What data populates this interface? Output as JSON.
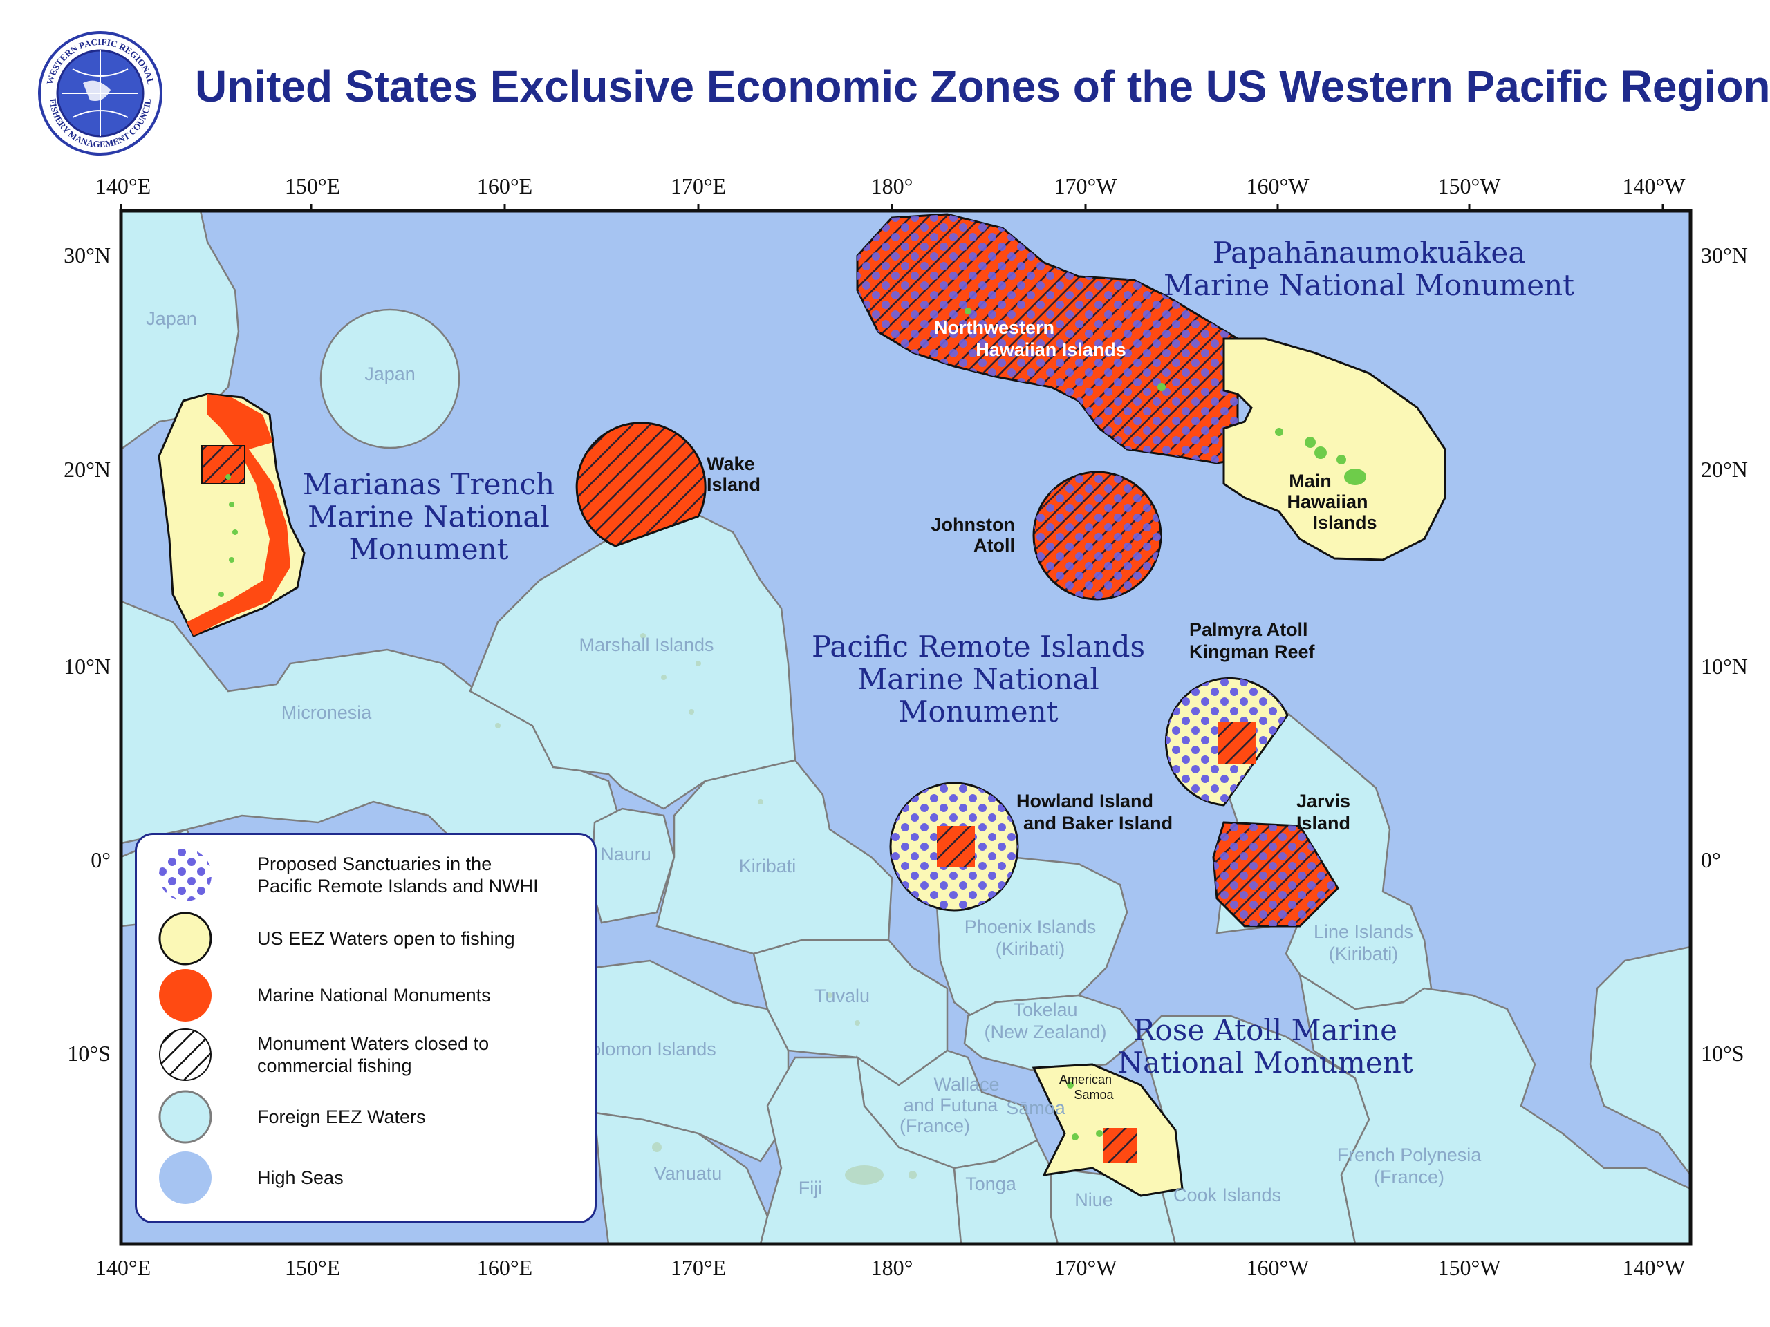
{
  "title": "United States Exclusive Economic Zones of the US Western Pacific Region",
  "logo": {
    "top_text": "WESTERN PACIFIC REGIONAL",
    "bottom_text": "FISHERY MANAGEMENT COUNCIL"
  },
  "axes": {
    "top_lon": [
      "140°E",
      "150°E",
      "160°E",
      "170°E",
      "180°",
      "170°W",
      "160°W",
      "150°W",
      "140°W"
    ],
    "bottom_lon": [
      "140°E",
      "150°E",
      "160°E",
      "170°E",
      "180°",
      "170°W",
      "160°W",
      "150°W",
      "140°W"
    ],
    "left_lat": [
      "30°N",
      "20°N",
      "10°N",
      "0°",
      "10°S"
    ],
    "right_lat": [
      "30°N",
      "20°N",
      "10°N",
      "0°",
      "10°S"
    ]
  },
  "foreign_labels": {
    "japan_1": "Japan",
    "japan_2": "Japan",
    "micronesia": "Micronesia",
    "marshall": "Marshall Islands",
    "nauru": "Nauru",
    "kiribati": "Kiribati",
    "phoenix_1": "Phoenix Islands",
    "phoenix_2": "(Kiribati)",
    "line_1": "Line Islands",
    "line_2": "(Kiribati)",
    "tuvalu": "Tuvalu",
    "tokelau_1": "Tokelau",
    "tokelau_2": "(New Zealand)",
    "wallace_1": "Wallace",
    "wallace_2": "and Futuna",
    "wallace_3": "(France)",
    "samoa": "Sāmoa",
    "solomon": "olomon Islands",
    "vanuatu": "Vanuatu",
    "fiji": "Fiji",
    "tonga": "Tonga",
    "niue": "Niue",
    "cook": "Cook Islands",
    "fp_1": "French Polynesia",
    "fp_2": "(France)"
  },
  "us_labels": {
    "wake_1": "Wake",
    "wake_2": "Island",
    "johnston_1": "Johnston",
    "johnston_2": "Atoll",
    "nwhi_1": "Northwestern",
    "nwhi_2": "Hawaiian Islands",
    "mhi_1": "Main",
    "mhi_2": "Hawaiian",
    "mhi_3": "Islands",
    "palmyra_1": "Palmyra Atoll",
    "palmyra_2": "Kingman Reef",
    "howland_1": "Howland Island",
    "howland_2": "and Baker Island",
    "jarvis_1": "Jarvis",
    "jarvis_2": "Island",
    "amsamoa_1": "American",
    "amsamoa_2": "Samoa"
  },
  "monument_labels": {
    "marianas_1": "Marianas Trench",
    "marianas_2": "Marine National",
    "marianas_3": "Monument",
    "papa_1": "Papahānaumokuākea",
    "papa_2": "Marine National Monument",
    "pri_1": "Pacific Remote Islands",
    "pri_2": "Marine National",
    "pri_3": "Monument",
    "rose_1": "Rose Atoll Marine",
    "rose_2": "National Monument"
  },
  "legend": {
    "items": [
      {
        "label_1": "Proposed Sanctuaries in the",
        "label_2": "Pacific Remote Islands and NWHI"
      },
      {
        "label_1": "US EEZ Waters open to fishing",
        "label_2": ""
      },
      {
        "label_1": "Marine National Monuments",
        "label_2": ""
      },
      {
        "label_1": "Monument Waters closed to",
        "label_2": "commercial fishing"
      },
      {
        "label_1": "Foreign EEZ Waters",
        "label_2": ""
      },
      {
        "label_1": "High Seas",
        "label_2": ""
      }
    ]
  },
  "colors": {
    "high_seas": "#a6c4f2",
    "foreign_eez": "#c4eef5",
    "us_eez": "#fbf8b6",
    "monument": "#ff4a12",
    "proposed_dot": "#6b63e0",
    "title": "#1f2a8c",
    "island": "#6ecc4a"
  }
}
